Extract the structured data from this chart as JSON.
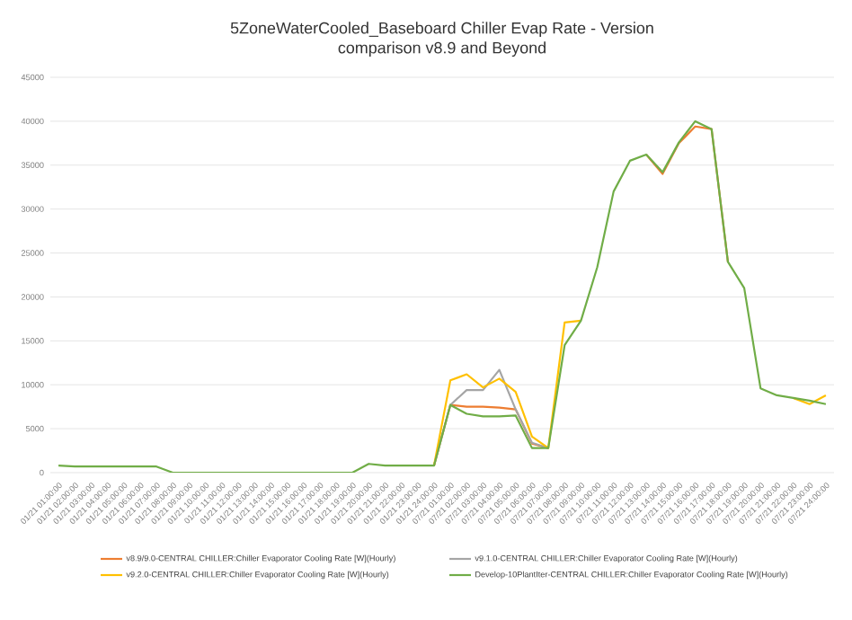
{
  "chart_data": {
    "type": "line",
    "title": "5ZoneWaterCooled_Baseboard Chiller Evap Rate - Version comparison v8.9 and Beyond",
    "categories": [
      "01/21 01:00:00",
      "01/21 02:00:00",
      "01/21 03:00:00",
      "01/21 04:00:00",
      "01/21 05:00:00",
      "01/21 06:00:00",
      "01/21 07:00:00",
      "01/21 08:00:00",
      "01/21 09:00:00",
      "01/21 10:00:00",
      "01/21 11:00:00",
      "01/21 12:00:00",
      "01/21 13:00:00",
      "01/21 14:00:00",
      "01/21 15:00:00",
      "01/21 16:00:00",
      "01/21 17:00:00",
      "01/21 18:00:00",
      "01/21 19:00:00",
      "01/21 20:00:00",
      "01/21 21:00:00",
      "01/21 22:00:00",
      "01/21 23:00:00",
      "01/21 24:00:00",
      "07/21 01:00:00",
      "07/21 02:00:00",
      "07/21 03:00:00",
      "07/21 04:00:00",
      "07/21 05:00:00",
      "07/21 06:00:00",
      "07/21 07:00:00",
      "07/21 08:00:00",
      "07/21 09:00:00",
      "07/21 10:00:00",
      "07/21 11:00:00",
      "07/21 12:00:00",
      "07/21 13:00:00",
      "07/21 14:00:00",
      "07/21 15:00:00",
      "07/21 16:00:00",
      "07/21 17:00:00",
      "07/21 18:00:00",
      "07/21 19:00:00",
      "07/21 20:00:00",
      "07/21 21:00:00",
      "07/21 22:00:00",
      "07/21 23:00:00",
      "07/21 24:00:00"
    ],
    "series": [
      {
        "name": "v8.9/9.0-CENTRAL CHILLER:Chiller Evaporator Cooling Rate [W](Hourly)",
        "color": "#ed7d31",
        "values": [
          null,
          null,
          null,
          null,
          null,
          null,
          null,
          null,
          null,
          null,
          null,
          null,
          null,
          null,
          null,
          null,
          null,
          null,
          null,
          null,
          null,
          null,
          null,
          800,
          7700,
          7500,
          7500,
          7400,
          7200,
          3300,
          2800,
          null,
          null,
          null,
          null,
          null,
          36200,
          34000,
          37500,
          39400,
          39100,
          24000,
          null,
          null,
          null,
          null,
          null,
          null
        ]
      },
      {
        "name": "v9.1.0-CENTRAL CHILLER:Chiller Evaporator Cooling Rate [W](Hourly)",
        "color": "#a5a5a5",
        "values": [
          null,
          null,
          null,
          null,
          null,
          null,
          null,
          null,
          null,
          null,
          null,
          null,
          null,
          null,
          null,
          null,
          null,
          null,
          null,
          null,
          null,
          null,
          null,
          800,
          7700,
          9400,
          9400,
          11700,
          7200,
          3400,
          2800,
          null,
          null,
          null,
          null,
          null,
          null,
          null,
          null,
          null,
          null,
          null,
          null,
          null,
          null,
          null,
          null,
          null
        ]
      },
      {
        "name": "v9.2.0-CENTRAL CHILLER:Chiller Evaporator Cooling Rate [W](Hourly)",
        "color": "#ffc000",
        "values": [
          null,
          null,
          null,
          null,
          null,
          null,
          null,
          null,
          null,
          null,
          null,
          null,
          null,
          null,
          null,
          null,
          null,
          null,
          null,
          null,
          null,
          null,
          null,
          800,
          10500,
          11200,
          9700,
          10700,
          9200,
          4100,
          2800,
          17100,
          17300,
          null,
          null,
          null,
          null,
          null,
          null,
          null,
          null,
          null,
          null,
          null,
          null,
          8500,
          7800,
          8800
        ]
      },
      {
        "name": "Develop-10PlantIter-CENTRAL CHILLER:Chiller Evaporator Cooling Rate [W](Hourly)",
        "color": "#70ad47",
        "values": [
          800,
          700,
          700,
          700,
          700,
          700,
          700,
          0,
          0,
          0,
          0,
          0,
          0,
          0,
          0,
          0,
          0,
          0,
          0,
          1000,
          800,
          800,
          800,
          800,
          7700,
          6700,
          6400,
          6400,
          6500,
          2800,
          2800,
          14500,
          17300,
          23400,
          32000,
          35500,
          36200,
          34200,
          37600,
          40000,
          39100,
          24000,
          21000,
          9600,
          8800,
          8500,
          8200,
          7800
        ]
      }
    ],
    "ylim": [
      0,
      45000
    ],
    "yticks": [
      0,
      5000,
      10000,
      15000,
      20000,
      25000,
      30000,
      35000,
      40000,
      45000
    ],
    "grid": "y",
    "legend": "bottom",
    "marker": "none",
    "line_style": "solid"
  }
}
